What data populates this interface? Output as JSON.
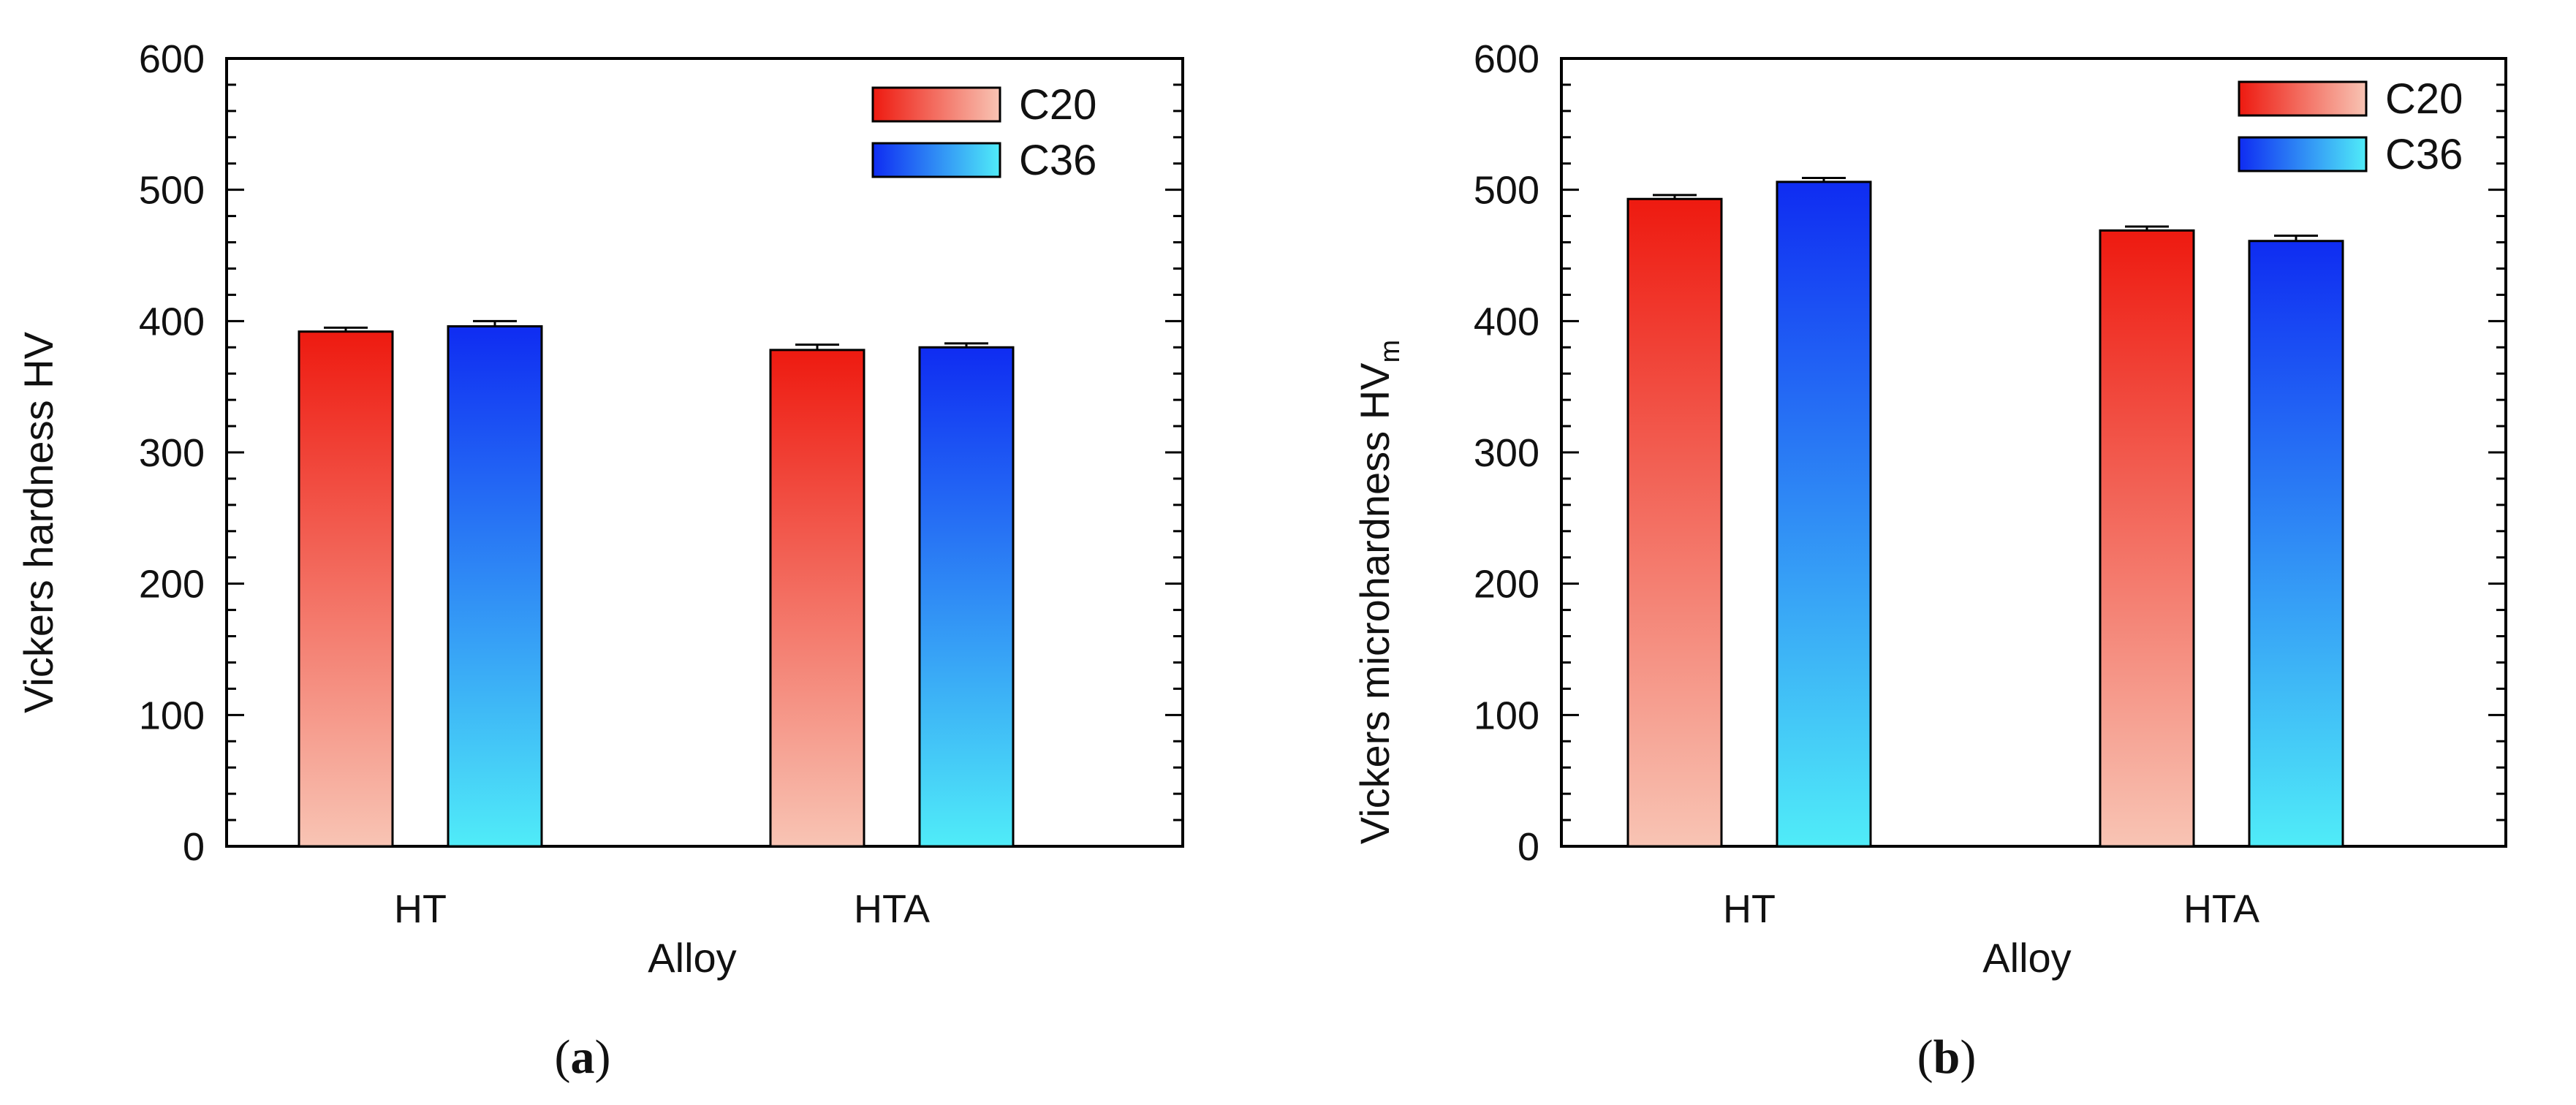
{
  "colors": {
    "c20_top": "#ee1a10",
    "c20_bottom": "#f8c4b4",
    "c36_top": "#0f2cf2",
    "c36_bottom": "#50ecf8",
    "axis": "#000000"
  },
  "chart_data": [
    {
      "type": "bar",
      "panel": "(a)",
      "panel_letter": "a",
      "categories": [
        "HT",
        "HTA"
      ],
      "series": [
        {
          "name": "C20",
          "values": [
            392,
            378
          ],
          "errors": [
            3,
            4
          ]
        },
        {
          "name": "C36",
          "values": [
            396,
            380
          ],
          "errors": [
            4,
            3
          ]
        }
      ],
      "xlabel": "Alloy",
      "ylabel": "Vickers hardness HV",
      "ylabel_sub": "",
      "ylim": [
        0,
        600
      ],
      "yticks": [
        "0",
        "100",
        "200",
        "300",
        "400",
        "500",
        "600"
      ],
      "legend_position": "top-right"
    },
    {
      "type": "bar",
      "panel": "(b)",
      "panel_letter": "b",
      "categories": [
        "HT",
        "HTA"
      ],
      "series": [
        {
          "name": "C20",
          "values": [
            493,
            469
          ],
          "errors": [
            3,
            3
          ]
        },
        {
          "name": "C36",
          "values": [
            506,
            461
          ],
          "errors": [
            3,
            4
          ]
        }
      ],
      "xlabel": "Alloy",
      "ylabel": "Vickers microhardness HV",
      "ylabel_sub": "m",
      "ylim": [
        0,
        600
      ],
      "yticks": [
        "0",
        "100",
        "200",
        "300",
        "400",
        "500",
        "600"
      ],
      "legend_position": "top-right"
    }
  ]
}
